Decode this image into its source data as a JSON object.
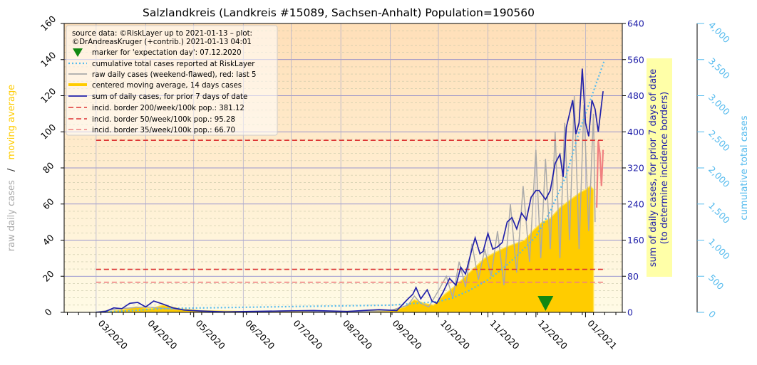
{
  "chart_data": {
    "type": "line",
    "title": "Salzlandkreis (Landkreis #15089, Sachsen-Anhalt) Population=190560",
    "ylabel_left": [
      "raw daily cases",
      "/",
      "moving average"
    ],
    "ylabel_right1": [
      "sum of daily cases, for prior 7 days of date",
      "(to determine incidence borders)"
    ],
    "ylabel_right2": "cumulative total cases",
    "ylim_left": [
      0,
      160
    ],
    "ylim_right1": [
      0,
      640
    ],
    "ylim_right2": [
      0,
      4000
    ],
    "left_ticks": [
      "0",
      "20",
      "40",
      "60",
      "80",
      "100",
      "120",
      "140",
      "160"
    ],
    "right1_ticks": [
      "0",
      "80",
      "160",
      "240",
      "320",
      "400",
      "480",
      "560",
      "640"
    ],
    "right2_ticks": [
      "0",
      "500",
      "1,000",
      "1,500",
      "2,000",
      "2,500",
      "3,000",
      "3,500",
      "4,000"
    ],
    "x_ticks": [
      "03/2020",
      "04/2020",
      "05/2020",
      "06/2020",
      "07/2020",
      "08/2020",
      "09/2020",
      "10/2020",
      "11/2020",
      "12/2020",
      "01/2021"
    ],
    "grid": true,
    "legend_position": "top-left",
    "legend": {
      "source": [
        "source data: ©RiskLayer up to 2021-01-13 – plot:",
        "©DrAndreasKruger (+contrib.) 2021-01-13 04:01"
      ],
      "entries": [
        {
          "key": "marker",
          "label": "marker for 'expectation day': 07.12.2020"
        },
        {
          "key": "cumulative",
          "label": "cumulative total cases reported at RiskLayer"
        },
        {
          "key": "raw",
          "label": "raw daily cases (weekend-flawed), red: last 5"
        },
        {
          "key": "avg",
          "label": "centered moving average, 14 days cases"
        },
        {
          "key": "sum7",
          "label": "sum of daily cases, for prior 7 days of date"
        },
        {
          "key": "b200",
          "label": "incid. border 200/week/100k pop.: 381.12"
        },
        {
          "key": "b50",
          "label": "incid. border 50/week/100k pop.: 95.28"
        },
        {
          "key": "b35",
          "label": "incid. border 35/week/100k pop.: 66.70"
        }
      ]
    },
    "borders_sum7": [
      381.12,
      95.28,
      66.7
    ],
    "expectation_day": "2020-12-07",
    "colors": {
      "raw": "#aaaaaa",
      "raw_last": "#f08080",
      "avg": "#ffcc00",
      "sum7": "#2222aa",
      "cumulative": "#55bbee",
      "b200": "#dd3333",
      "b50": "#dd3333",
      "b35": "#f08080",
      "marker": "#118811",
      "left_label_raw": "#aaaaaa",
      "left_label_avg": "#ffcc00",
      "right1": "#2222aa",
      "right2": "#55bbee"
    },
    "series": {
      "sum7": {
        "dates": [
          "2020-03-01",
          "2020-03-07",
          "2020-03-12",
          "2020-03-17",
          "2020-03-22",
          "2020-03-27",
          "2020-04-01",
          "2020-04-06",
          "2020-04-12",
          "2020-04-18",
          "2020-04-25",
          "2020-05-05",
          "2020-05-20",
          "2020-06-05",
          "2020-06-25",
          "2020-07-15",
          "2020-08-05",
          "2020-08-25",
          "2020-09-05",
          "2020-09-12",
          "2020-09-15",
          "2020-09-17",
          "2020-09-20",
          "2020-09-24",
          "2020-09-27",
          "2020-09-30",
          "2020-10-04",
          "2020-10-08",
          "2020-10-12",
          "2020-10-15",
          "2020-10-18",
          "2020-10-22",
          "2020-10-24",
          "2020-10-27",
          "2020-10-29",
          "2020-11-01",
          "2020-11-04",
          "2020-11-07",
          "2020-11-10",
          "2020-11-13",
          "2020-11-16",
          "2020-11-19",
          "2020-11-22",
          "2020-11-25",
          "2020-11-28",
          "2020-12-01",
          "2020-12-03",
          "2020-12-05",
          "2020-12-07",
          "2020-12-10",
          "2020-12-13",
          "2020-12-16",
          "2020-12-18",
          "2020-12-20",
          "2020-12-22",
          "2020-12-24",
          "2020-12-26",
          "2020-12-28",
          "2020-12-30",
          "2021-01-01",
          "2021-01-03",
          "2021-01-05",
          "2021-01-07",
          "2021-01-09",
          "2021-01-11",
          "2021-01-12"
        ],
        "values": [
          0,
          2,
          10,
          8,
          20,
          22,
          12,
          25,
          18,
          10,
          5,
          3,
          1,
          2,
          3,
          4,
          2,
          6,
          4,
          30,
          40,
          55,
          30,
          50,
          25,
          20,
          45,
          75,
          60,
          100,
          85,
          140,
          165,
          130,
          135,
          175,
          140,
          145,
          155,
          200,
          210,
          185,
          220,
          205,
          255,
          270,
          270,
          260,
          250,
          270,
          330,
          350,
          300,
          410,
          440,
          470,
          395,
          420,
          540,
          420,
          390,
          470,
          450,
          400,
          460,
          490
        ]
      },
      "cumulative": {
        "dates": [
          "2020-03-01",
          "2020-03-20",
          "2020-04-10",
          "2020-05-01",
          "2020-06-01",
          "2020-07-01",
          "2020-08-01",
          "2020-09-01",
          "2020-09-20",
          "2020-10-01",
          "2020-10-10",
          "2020-10-20",
          "2020-11-01",
          "2020-11-10",
          "2020-11-20",
          "2020-12-01",
          "2020-12-10",
          "2020-12-20",
          "2020-12-28",
          "2021-01-05",
          "2021-01-13"
        ],
        "values": [
          0,
          20,
          50,
          60,
          70,
          80,
          90,
          100,
          130,
          150,
          200,
          300,
          450,
          600,
          800,
          1050,
          1400,
          1900,
          2500,
          3000,
          3500
        ]
      },
      "avg": {
        "dates": [
          "2020-03-01",
          "2020-03-10",
          "2020-03-18",
          "2020-03-26",
          "2020-04-04",
          "2020-04-12",
          "2020-04-22",
          "2020-05-05",
          "2020-06-01",
          "2020-07-01",
          "2020-08-01",
          "2020-09-01",
          "2020-09-10",
          "2020-09-16",
          "2020-09-22",
          "2020-09-28",
          "2020-10-05",
          "2020-10-12",
          "2020-10-18",
          "2020-10-24",
          "2020-10-30",
          "2020-11-05",
          "2020-11-12",
          "2020-11-18",
          "2020-11-24",
          "2020-11-30",
          "2020-12-05",
          "2020-12-10",
          "2020-12-16",
          "2020-12-22",
          "2020-12-28",
          "2021-01-01",
          "2021-01-04",
          "2021-01-06"
        ],
        "values": [
          0,
          0.5,
          1.5,
          3,
          2,
          4,
          2,
          1,
          0.5,
          0.5,
          0.5,
          1,
          3,
          7,
          5,
          4,
          10,
          15,
          20,
          25,
          30,
          33,
          36,
          38,
          40,
          46,
          50,
          52,
          58,
          62,
          66,
          68,
          70,
          68
        ]
      },
      "raw": {
        "dates": [
          "2020-03-01",
          "2020-03-15",
          "2020-04-01",
          "2020-05-01",
          "2020-06-01",
          "2020-07-01",
          "2020-08-01",
          "2020-09-01",
          "2020-09-12",
          "2020-09-16",
          "2020-09-20",
          "2020-09-25",
          "2020-10-01",
          "2020-10-06",
          "2020-10-10",
          "2020-10-14",
          "2020-10-18",
          "2020-10-22",
          "2020-10-26",
          "2020-10-30",
          "2020-11-03",
          "2020-11-07",
          "2020-11-11",
          "2020-11-15",
          "2020-11-19",
          "2020-11-23",
          "2020-11-27",
          "2020-12-01",
          "2020-12-04",
          "2020-12-07",
          "2020-12-10",
          "2020-12-13",
          "2020-12-16",
          "2020-12-19",
          "2020-12-22",
          "2020-12-25",
          "2020-12-28",
          "2020-12-31",
          "2021-01-03",
          "2021-01-06",
          "2021-01-07"
        ],
        "values": [
          0,
          2,
          3,
          1,
          0,
          1,
          0,
          1,
          4,
          9,
          5,
          3,
          12,
          20,
          8,
          28,
          14,
          38,
          18,
          35,
          20,
          45,
          15,
          60,
          22,
          70,
          28,
          90,
          30,
          85,
          35,
          100,
          30,
          105,
          40,
          120,
          35,
          115,
          45,
          110,
          50
        ]
      },
      "raw_last5": {
        "dates": [
          "2021-01-08",
          "2021-01-09",
          "2021-01-10",
          "2021-01-11",
          "2021-01-12"
        ],
        "values": [
          58,
          95,
          88,
          70,
          90
        ]
      }
    }
  }
}
